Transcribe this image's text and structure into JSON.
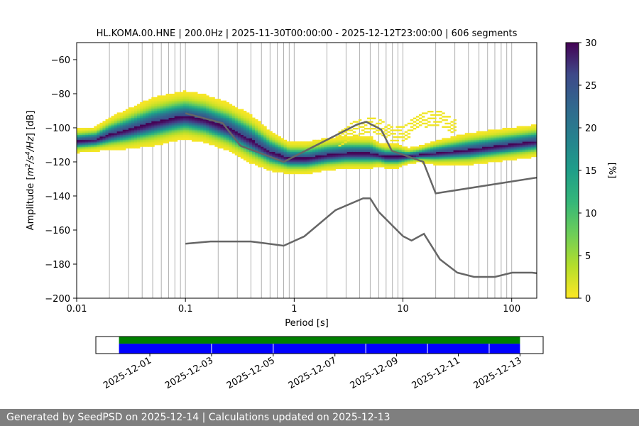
{
  "chart_data": [
    {
      "type": "heatmap",
      "title": "HL.KOMA.00.HNE | 200.0Hz | 2025-11-30T00:00:00 - 2025-12-12T23:00:00 | 606 segments",
      "xlabel": "Period [s]",
      "ylabel_prefix": "Amplitude [",
      "ylabel_suffix": "] [dB]",
      "ylabel_units": [
        {
          "base": "m",
          "exp": "2"
        },
        {
          "base": "/s",
          "exp": "4"
        },
        {
          "base": "/Hz",
          "exp": ""
        }
      ],
      "x_scale": "log",
      "xlim": [
        0.01,
        170
      ],
      "ylim": [
        -200,
        -50
      ],
      "x_ticks": [
        {
          "value": 0.01,
          "label": "0.01"
        },
        {
          "value": 0.1,
          "label": "0.1"
        },
        {
          "value": 1,
          "label": "1"
        },
        {
          "value": 10,
          "label": "10"
        },
        {
          "value": 100,
          "label": "100"
        }
      ],
      "y_ticks": [
        {
          "value": -60,
          "label": "−60"
        },
        {
          "value": -80,
          "label": "−80"
        },
        {
          "value": -100,
          "label": "−100"
        },
        {
          "value": -120,
          "label": "−120"
        },
        {
          "value": -140,
          "label": "−140"
        },
        {
          "value": -160,
          "label": "−160"
        },
        {
          "value": -180,
          "label": "−180"
        },
        {
          "value": -200,
          "label": "−200"
        }
      ],
      "grid": "vertical minor and major lines on period axis",
      "colormap": "viridis_r",
      "colors": {
        "low": "#fde725",
        "mid": "#21918c",
        "high": "#440154",
        "model_lines": "#666666"
      },
      "colorbar": {
        "label": "[%]",
        "range": [
          0,
          30
        ],
        "ticks": [
          {
            "value": 0,
            "label": "0"
          },
          {
            "value": 5,
            "label": "5"
          },
          {
            "value": 10,
            "label": "10"
          },
          {
            "value": 15,
            "label": "15"
          },
          {
            "value": 20,
            "label": "20"
          },
          {
            "value": 25,
            "label": "25"
          },
          {
            "value": 30,
            "label": "30"
          }
        ]
      },
      "mode_curve": {
        "x": [
          0.01,
          0.015,
          0.02,
          0.03,
          0.05,
          0.08,
          0.1,
          0.15,
          0.25,
          0.4,
          0.6,
          0.9,
          1.3,
          2,
          3,
          4,
          5,
          6,
          7,
          9,
          11,
          14,
          20,
          40,
          70,
          170
        ],
        "y": [
          -108,
          -107,
          -104,
          -101,
          -97,
          -94,
          -93,
          -95,
          -100,
          -107,
          -114,
          -118,
          -118,
          -116,
          -115,
          -115,
          -115,
          -116,
          -117,
          -117,
          -117,
          -116,
          -115,
          -113,
          -111,
          -108
        ],
        "spread_db": [
          3,
          3,
          4,
          5,
          6,
          6,
          6,
          6,
          6,
          6,
          5,
          4,
          4,
          4,
          4,
          4,
          4,
          3,
          3,
          3,
          2,
          2,
          3,
          4,
          4,
          4
        ]
      },
      "outlier_band": {
        "x": [
          2.5,
          3.5,
          5,
          6.5,
          8,
          10,
          12,
          15,
          20,
          25,
          30
        ],
        "y_center": [
          -108,
          -101,
          -98,
          -100,
          -104,
          -104,
          -100,
          -96,
          -94,
          -96,
          -100
        ]
      },
      "series": [
        {
          "x": [
            0.1,
            0.17,
            0.4,
            0.8,
            1.24,
            2.4,
            4.3,
            5,
            6,
            10,
            12,
            15.6,
            21.9,
            31.6,
            45,
            70,
            101,
            154,
            178
          ],
          "y": [
            -168,
            -166.7,
            -166.7,
            -169.2,
            -163.7,
            -148.3,
            -141.4,
            -141.4,
            -149.4,
            -163.6,
            -166.2,
            -162.2,
            -177.2,
            -185,
            -187.5,
            -187.5,
            -185,
            -185,
            -185.5
          ]
        },
        {
          "x": [
            0.1,
            0.22,
            0.32,
            0.8,
            3.8,
            4.6,
            6.3,
            7.9,
            15.4,
            20,
            178
          ],
          "y": [
            -91.5,
            -97.3,
            -110.5,
            -120,
            -98,
            -96.5,
            -101,
            -113.5,
            -120,
            -138.5,
            -129
          ]
        }
      ]
    },
    {
      "type": "bar",
      "x_type": "time",
      "xlim": [
        "2025-11-29T06:00:00",
        "2025-12-13T18:00:00"
      ],
      "coverage": {
        "start": "2025-11-30T00:00:00",
        "end": "2025-12-13T00:00:00"
      },
      "colors": {
        "upper": "#008000",
        "lower": "#0000ff"
      },
      "gaps": [
        "2025-12-03",
        "2025-12-05",
        "2025-12-08",
        "2025-12-10",
        "2025-12-12"
      ],
      "x_ticks": [
        {
          "value": "2025-12-01",
          "label": "2025-12-01"
        },
        {
          "value": "2025-12-03",
          "label": "2025-12-03"
        },
        {
          "value": "2025-12-05",
          "label": "2025-12-05"
        },
        {
          "value": "2025-12-07",
          "label": "2025-12-07"
        },
        {
          "value": "2025-12-09",
          "label": "2025-12-09"
        },
        {
          "value": "2025-12-11",
          "label": "2025-12-11"
        },
        {
          "value": "2025-12-13",
          "label": "2025-12-13"
        }
      ]
    }
  ],
  "footer": {
    "text": "Generated by SeedPSD on 2025-12-14 | Calculations updated on 2025-12-13"
  }
}
